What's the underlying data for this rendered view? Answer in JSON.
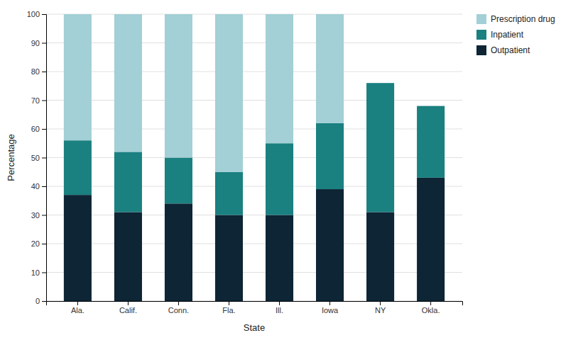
{
  "chart_data": {
    "type": "bar",
    "stacked": true,
    "xlabel": "State",
    "ylabel": "Percentage",
    "categories": [
      "Ala.",
      "Calif.",
      "Conn.",
      "Fla.",
      "Ill.",
      "Iowa",
      "NY",
      "Okla."
    ],
    "series": [
      {
        "name": "Outpatient",
        "color": "#0d2535",
        "values": [
          37,
          31,
          34,
          30,
          30,
          39,
          31,
          43
        ]
      },
      {
        "name": "Inpatient",
        "color": "#1a8080",
        "values": [
          19,
          21,
          16,
          15,
          25,
          23,
          45,
          25
        ]
      },
      {
        "name": "Prescription drug",
        "color": "#a3cfd6",
        "values": [
          44,
          48,
          50,
          55,
          45,
          38,
          0,
          0
        ]
      }
    ],
    "ylim": [
      0,
      100
    ],
    "yticks": [
      0,
      10,
      20,
      30,
      40,
      50,
      60,
      70,
      80,
      90,
      100
    ],
    "grid": true,
    "legend": "upper right"
  }
}
